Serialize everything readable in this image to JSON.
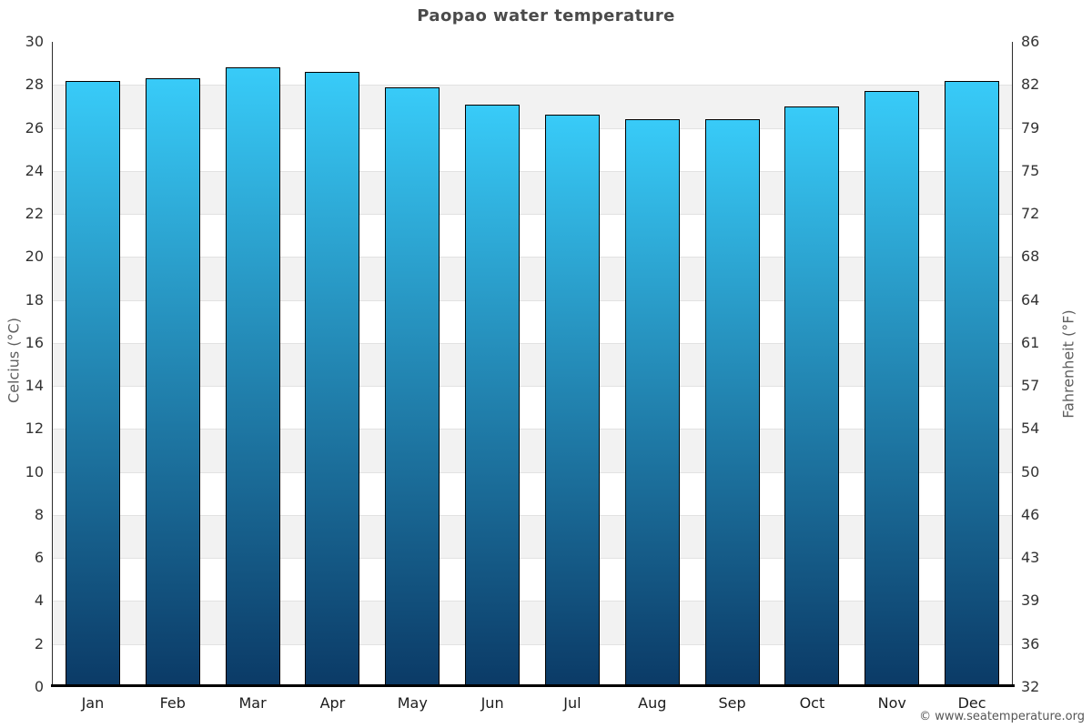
{
  "chart_data": {
    "type": "bar",
    "title": "Paopao water temperature",
    "categories": [
      "Jan",
      "Feb",
      "Mar",
      "Apr",
      "May",
      "Jun",
      "Jul",
      "Aug",
      "Sep",
      "Oct",
      "Nov",
      "Dec"
    ],
    "series": [
      {
        "name": "Water temperature",
        "unit": "°C",
        "values": [
          28.2,
          28.3,
          28.8,
          28.6,
          27.9,
          27.1,
          26.6,
          26.4,
          26.4,
          27.0,
          27.7,
          28.2
        ]
      }
    ],
    "xlabel": "",
    "ylabel_left": "Celcius (°C)",
    "ylabel_right": "Fahrenheit (°F)",
    "ylim_celsius": [
      0,
      30
    ],
    "yticks_celsius": [
      30,
      28,
      26,
      24,
      22,
      20,
      18,
      16,
      14,
      12,
      10,
      8,
      6,
      4,
      2,
      0
    ],
    "yticks_fahrenheit": [
      86,
      82,
      79,
      75,
      72,
      68,
      64,
      61,
      57,
      54,
      50,
      46,
      43,
      39,
      36,
      32
    ],
    "grid": "alternating-horizontal-bands",
    "legend": "none",
    "colors": {
      "bar_gradient_top": "#38cbf8",
      "bar_gradient_bottom": "#0b3a66",
      "bar_border": "#000000",
      "band_shaded": "#f2f2f2",
      "band_plain": "#ffffff",
      "gridline": "#e2e2e2",
      "axis_line": "#2b2b2b",
      "baseline": "#000000",
      "title_text": "#4a4a4a",
      "tick_text": "#333333",
      "axis_title_text": "#5d5d5d"
    }
  },
  "footer": {
    "credit": "© www.seatemperature.org"
  }
}
